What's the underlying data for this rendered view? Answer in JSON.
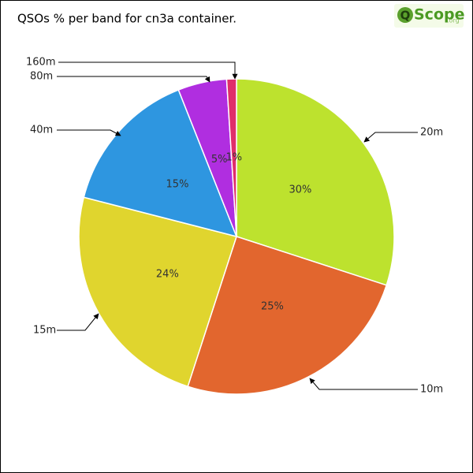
{
  "chart_data": {
    "type": "pie",
    "title": "QSOs % per band for cn3a container.",
    "logo": {
      "mark": "Q",
      "name": "Scope",
      "domain": ".org"
    },
    "categories": [
      "20m",
      "10m",
      "15m",
      "40m",
      "80m",
      "160m"
    ],
    "values": [
      30,
      25,
      24,
      15,
      5,
      1
    ],
    "value_labels": [
      "30%",
      "25%",
      "24%",
      "15%",
      "5%",
      "1%"
    ],
    "colors": [
      "#bde22e",
      "#e2662e",
      "#e0d52e",
      "#2e96e0",
      "#b02ee0",
      "#e02e6a"
    ]
  }
}
